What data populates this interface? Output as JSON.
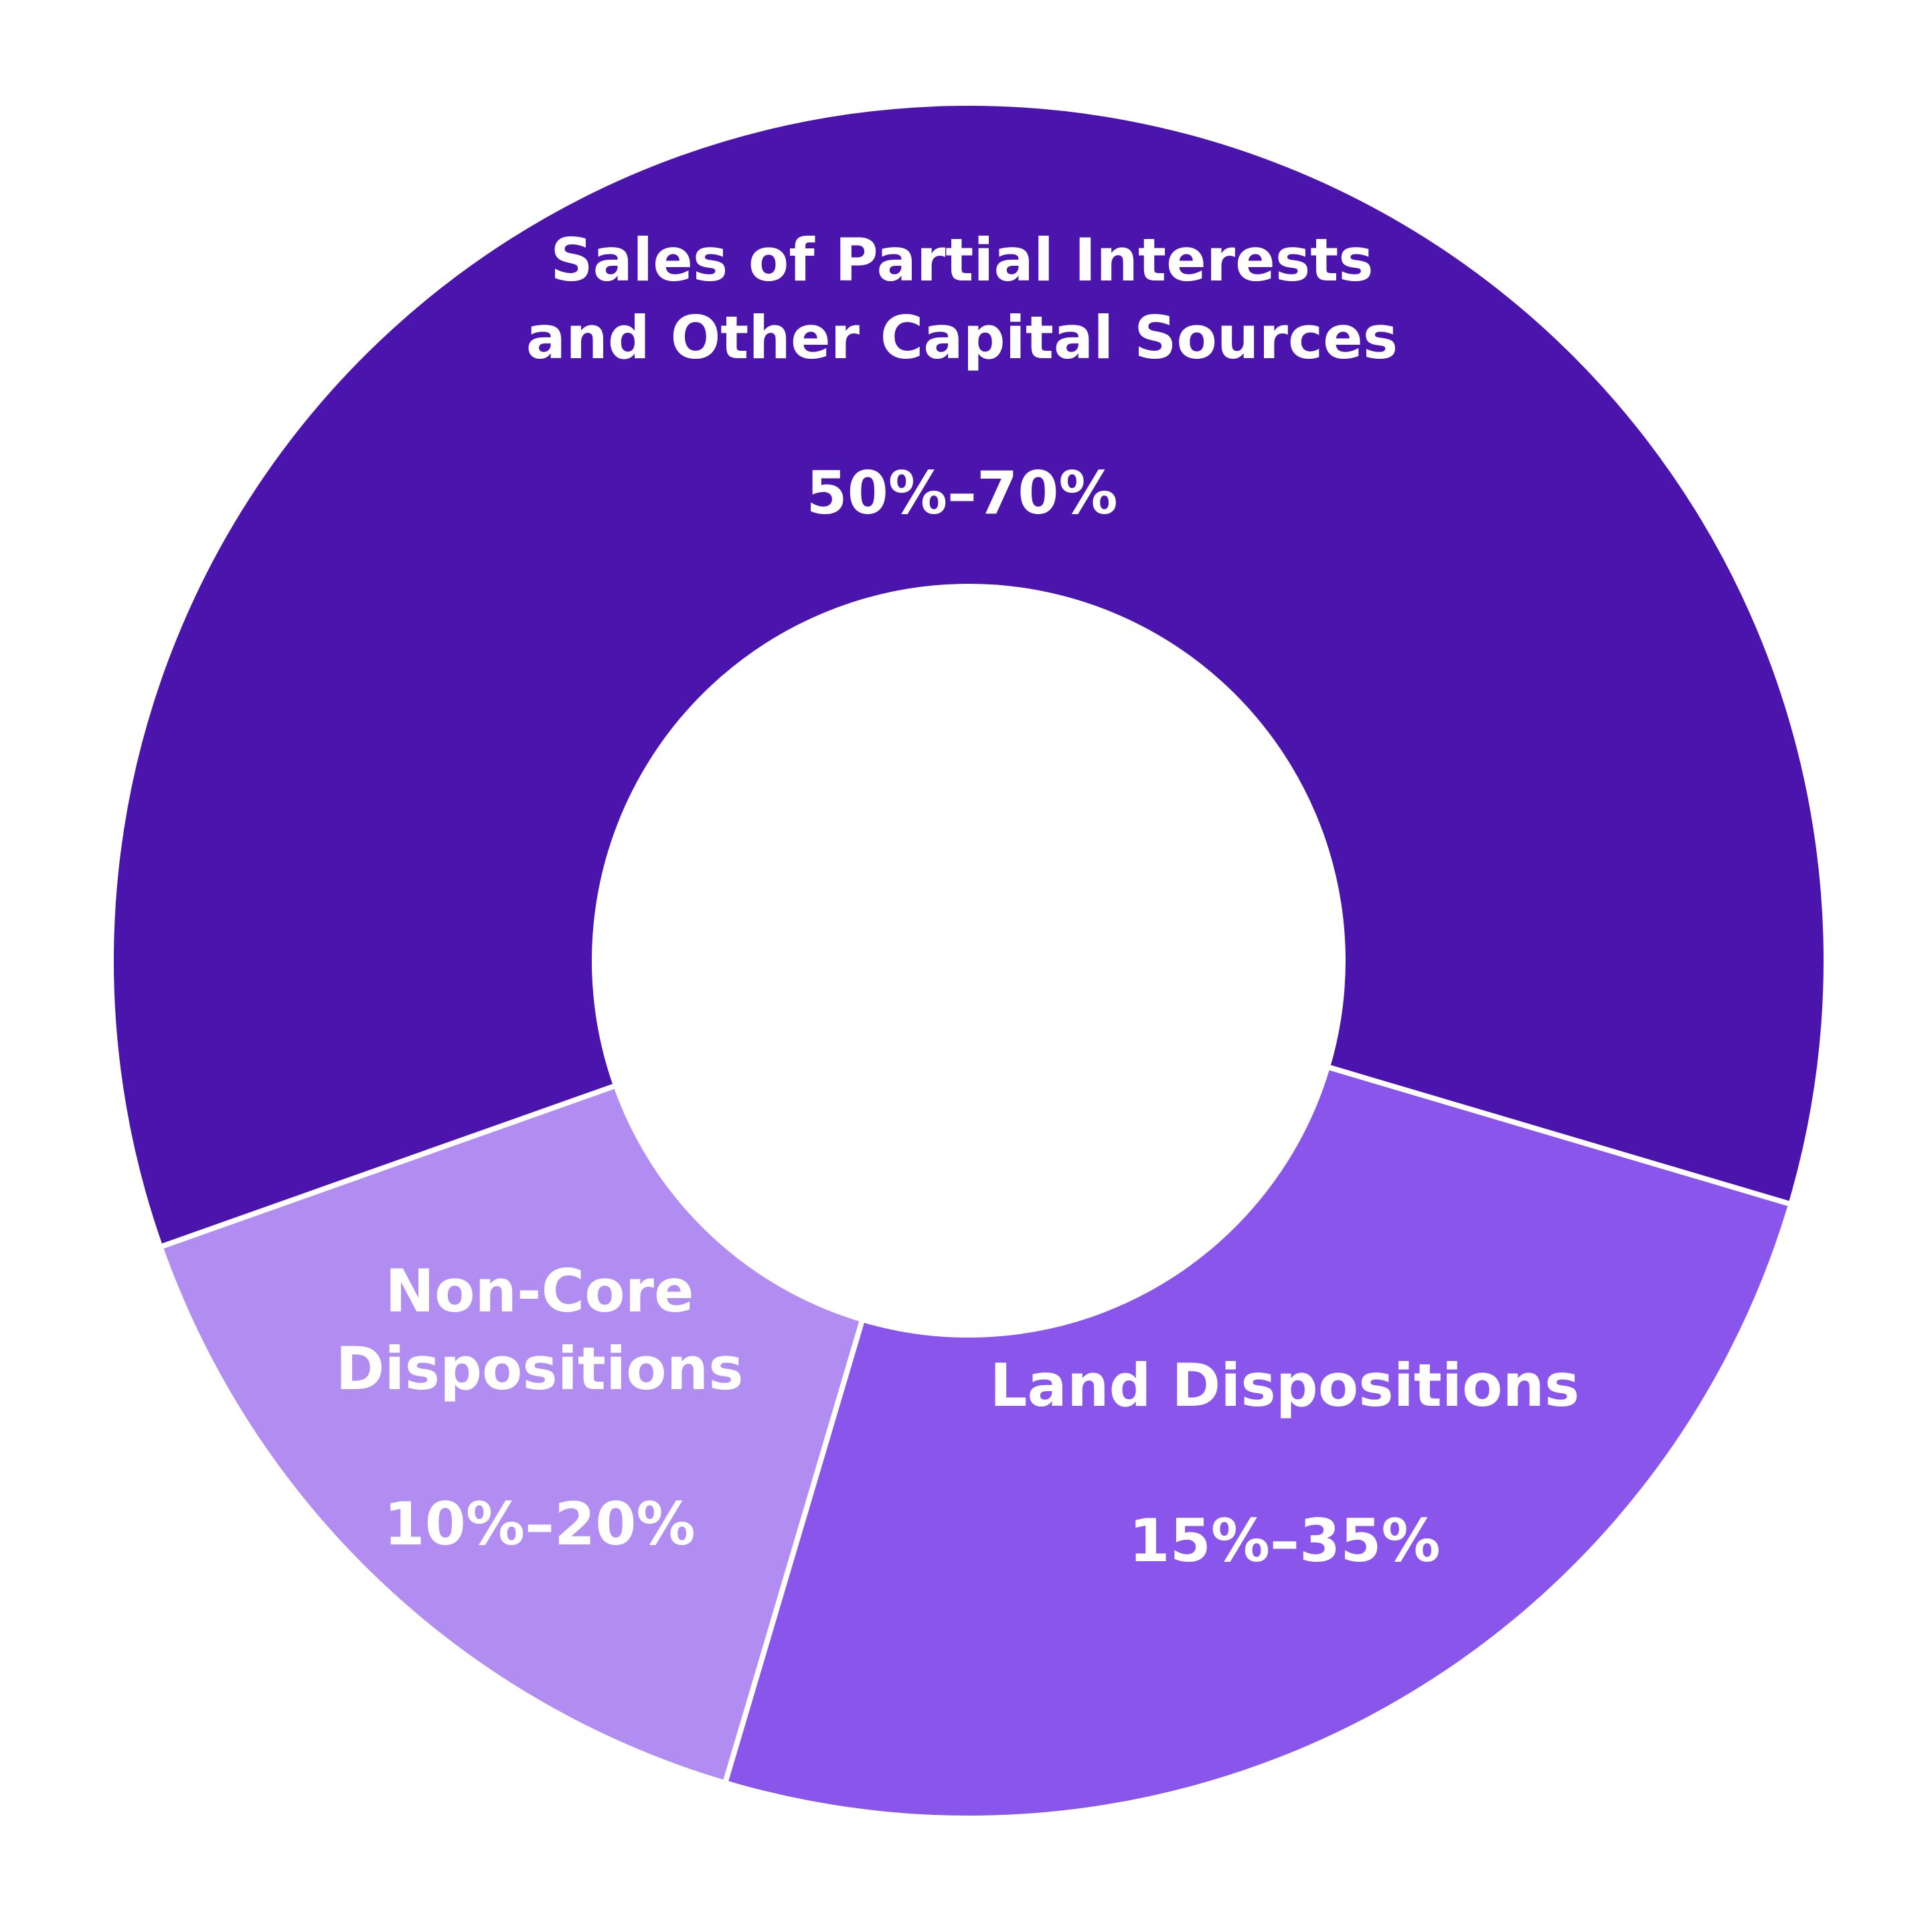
{
  "chart_data": {
    "type": "donut",
    "categories": [
      "Sales of Partial Interests\nand Other Capital Sources",
      "Land Dispositions",
      "Non-Core\nDispositions"
    ],
    "values": [
      60,
      25,
      15
    ],
    "value_labels": [
      "50%–70%",
      "15%–35%",
      "10%–20%"
    ],
    "colors": [
      "#4b15ad",
      "#8a55eb",
      "#b18df1"
    ]
  }
}
